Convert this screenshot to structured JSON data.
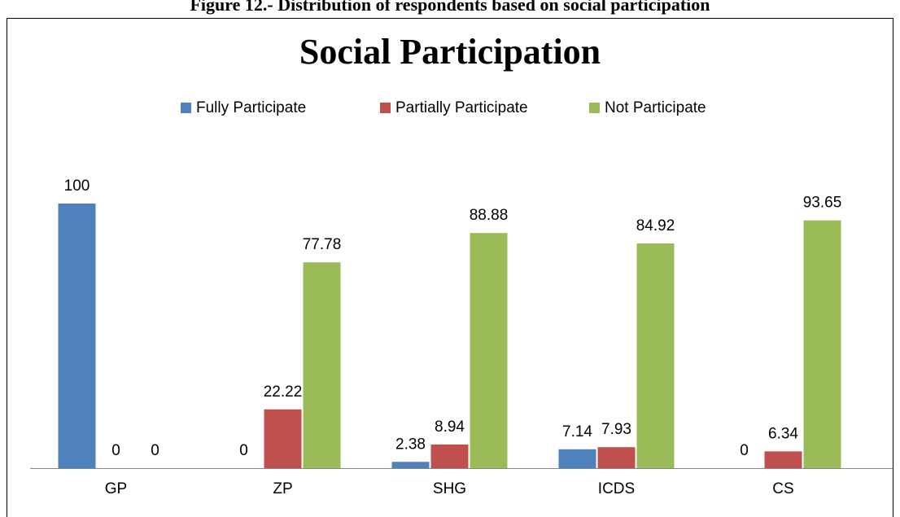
{
  "chart_data": {
    "type": "bar",
    "caption": "Figure 12.- Distribution of respondents based on social participation",
    "title": "Social Participation",
    "categories": [
      "GP",
      "ZP",
      "SHG",
      "ICDS",
      "CS"
    ],
    "series": [
      {
        "name": "Fully Participate",
        "color": "#4f81bd",
        "values": [
          100,
          0,
          2.38,
          7.14,
          0
        ]
      },
      {
        "name": "Partially Participate",
        "color": "#c0504d",
        "values": [
          0,
          22.22,
          8.94,
          7.93,
          6.34
        ]
      },
      {
        "name": "Not Participate",
        "color": "#9bbb59",
        "values": [
          0,
          77.78,
          88.88,
          84.92,
          93.65
        ]
      }
    ],
    "legend": "top"
  }
}
